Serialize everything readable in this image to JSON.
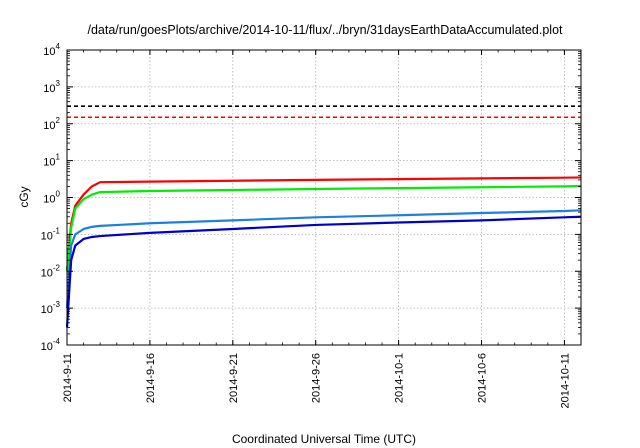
{
  "chart_data": {
    "type": "line",
    "title": "/data/run/goesPlots/archive/2014-10-11/flux/../bryn/31daysEarthDataAccumulated.plot",
    "xlabel": "Coordinated Universal Time (UTC)",
    "ylabel": "cGy",
    "yscale": "log",
    "ylim": [
      0.0001,
      10000
    ],
    "xlim": [
      "2014-09-11",
      "2014-10-12"
    ],
    "grid": true,
    "x_ticks": [
      "2014-9-11",
      "2014-9-16",
      "2014-9-21",
      "2014-9-26",
      "2014-10-1",
      "2014-10-6",
      "2014-10-11"
    ],
    "y_ticks": [
      {
        "value": 0.0001,
        "base": "10",
        "exp": "-4"
      },
      {
        "value": 0.001,
        "base": "10",
        "exp": "-3"
      },
      {
        "value": 0.01,
        "base": "10",
        "exp": "-2"
      },
      {
        "value": 0.1,
        "base": "10",
        "exp": "-1"
      },
      {
        "value": 1,
        "base": "10",
        "exp": "0"
      },
      {
        "value": 10,
        "base": "10",
        "exp": "1"
      },
      {
        "value": 100,
        "base": "10",
        "exp": "2"
      },
      {
        "value": 1000,
        "base": "10",
        "exp": "3"
      },
      {
        "value": 10000,
        "base": "10",
        "exp": "4"
      }
    ],
    "reference_lines": [
      {
        "y": 300,
        "color": "#000000",
        "style": "dashed"
      },
      {
        "y": 150,
        "color": "#ff0000",
        "style": "dashed"
      }
    ],
    "series": [
      {
        "color": "#ff0000",
        "points": [
          [
            "2014-09-11",
            0.01
          ],
          [
            "2014-09-11T06:00",
            0.2
          ],
          [
            "2014-09-11T12:00",
            0.6
          ],
          [
            "2014-09-12",
            1.2
          ],
          [
            "2014-09-12T12:00",
            2.0
          ],
          [
            "2014-09-13",
            2.6
          ],
          [
            "2014-09-16",
            2.7
          ],
          [
            "2014-09-21",
            2.85
          ],
          [
            "2014-09-26",
            3.0
          ],
          [
            "2014-10-01",
            3.15
          ],
          [
            "2014-10-06",
            3.3
          ],
          [
            "2014-10-11",
            3.45
          ],
          [
            "2014-10-12",
            3.5
          ]
        ]
      },
      {
        "color": "#00ee00",
        "points": [
          [
            "2014-09-11",
            0.01
          ],
          [
            "2014-09-11T06:00",
            0.15
          ],
          [
            "2014-09-11T12:00",
            0.5
          ],
          [
            "2014-09-12",
            0.9
          ],
          [
            "2014-09-12T12:00",
            1.2
          ],
          [
            "2014-09-13",
            1.4
          ],
          [
            "2014-09-16",
            1.5
          ],
          [
            "2014-09-21",
            1.6
          ],
          [
            "2014-09-26",
            1.7
          ],
          [
            "2014-10-01",
            1.8
          ],
          [
            "2014-10-06",
            1.9
          ],
          [
            "2014-10-11",
            2.0
          ],
          [
            "2014-10-12",
            2.05
          ]
        ]
      },
      {
        "color": "#1f7fe0",
        "points": [
          [
            "2014-09-11",
            0.001
          ],
          [
            "2014-09-11T06:00",
            0.05
          ],
          [
            "2014-09-11T12:00",
            0.1
          ],
          [
            "2014-09-12",
            0.14
          ],
          [
            "2014-09-12T12:00",
            0.16
          ],
          [
            "2014-09-13",
            0.17
          ],
          [
            "2014-09-16",
            0.2
          ],
          [
            "2014-09-21",
            0.24
          ],
          [
            "2014-09-26",
            0.29
          ],
          [
            "2014-10-01",
            0.33
          ],
          [
            "2014-10-06",
            0.38
          ],
          [
            "2014-10-11",
            0.43
          ],
          [
            "2014-10-12",
            0.45
          ]
        ]
      },
      {
        "color": "#0000cc",
        "points": [
          [
            "2014-09-11",
            0.0003
          ],
          [
            "2014-09-11T06:00",
            0.02
          ],
          [
            "2014-09-11T12:00",
            0.05
          ],
          [
            "2014-09-12",
            0.075
          ],
          [
            "2014-09-12T12:00",
            0.085
          ],
          [
            "2014-09-13",
            0.09
          ],
          [
            "2014-09-16",
            0.11
          ],
          [
            "2014-09-21",
            0.14
          ],
          [
            "2014-09-26",
            0.18
          ],
          [
            "2014-10-01",
            0.21
          ],
          [
            "2014-10-06",
            0.24
          ],
          [
            "2014-10-11",
            0.29
          ],
          [
            "2014-10-12",
            0.3
          ]
        ]
      }
    ]
  }
}
